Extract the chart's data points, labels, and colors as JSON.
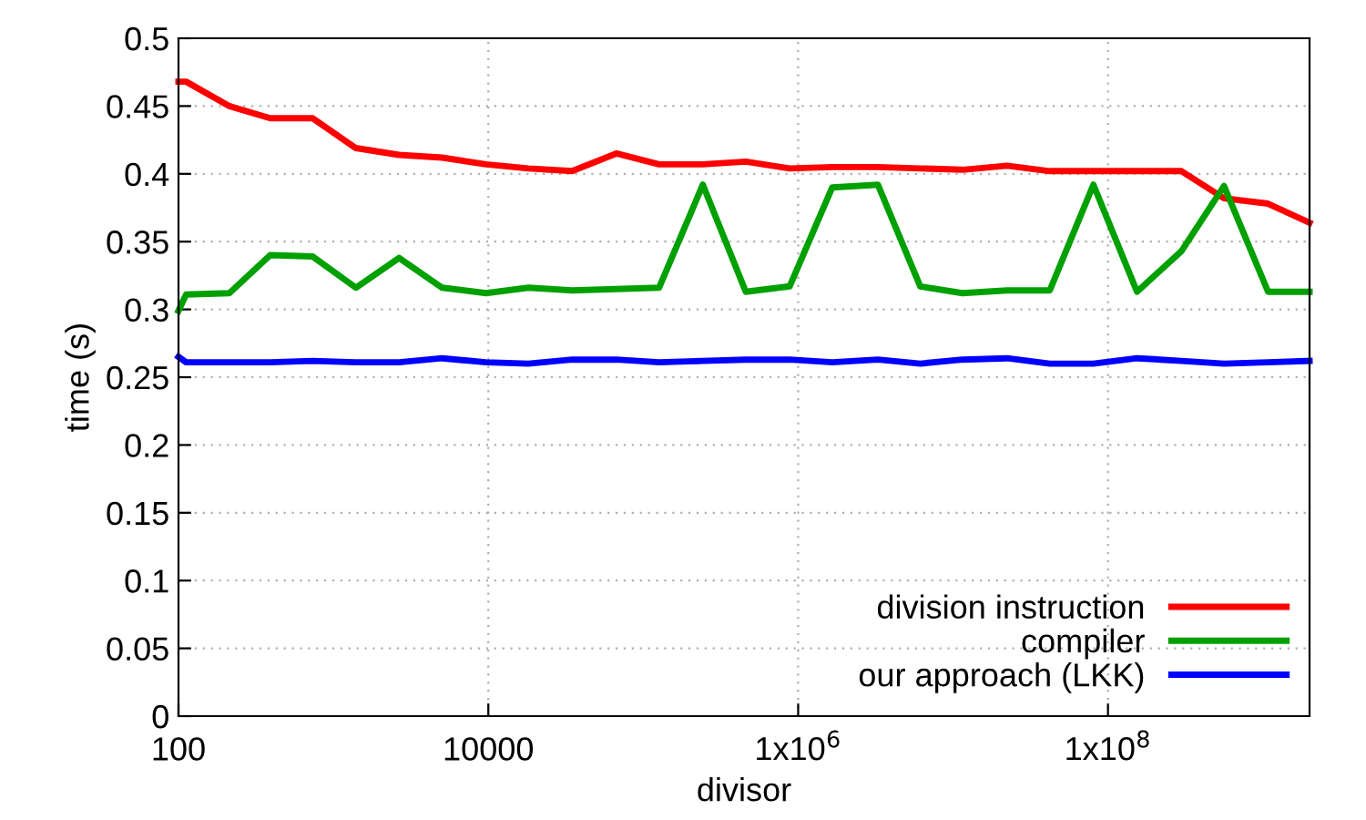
{
  "chart_data": {
    "type": "line",
    "xlabel": "divisor",
    "ylabel": "time (s)",
    "log": "x",
    "x": [
      100,
      112,
      213,
      391,
      736,
      1396,
      2654,
      5035,
      9660,
      18150,
      34750,
      67100,
      126500,
      242500,
      459000,
      881000,
      1660000,
      3270000,
      6140000,
      11500000,
      22300000,
      42100000,
      80500000,
      154000000,
      298000000,
      561000000,
      1080000000,
      2000000000
    ],
    "series": [
      {
        "name": "division instruction",
        "color": "#ff0000",
        "values": [
          0.468,
          0.468,
          0.45,
          0.441,
          0.441,
          0.419,
          0.414,
          0.412,
          0.407,
          0.404,
          0.402,
          0.415,
          0.407,
          0.407,
          0.409,
          0.404,
          0.405,
          0.405,
          0.404,
          0.403,
          0.406,
          0.402,
          0.402,
          0.402,
          0.402,
          0.382,
          0.378,
          0.364
        ]
      },
      {
        "name": "compiler",
        "color": "#00a000",
        "values": [
          0.299,
          0.311,
          0.312,
          0.34,
          0.339,
          0.316,
          0.338,
          0.316,
          0.312,
          0.316,
          0.314,
          0.315,
          0.316,
          0.392,
          0.313,
          0.317,
          0.39,
          0.392,
          0.317,
          0.312,
          0.314,
          0.314,
          0.392,
          0.313,
          0.343,
          0.391,
          0.313,
          0.313
        ]
      },
      {
        "name": "our approach (LKK)",
        "color": "#0000ff",
        "values": [
          0.265,
          0.261,
          0.261,
          0.261,
          0.262,
          0.261,
          0.261,
          0.264,
          0.261,
          0.26,
          0.263,
          0.263,
          0.261,
          0.262,
          0.263,
          0.263,
          0.261,
          0.263,
          0.26,
          0.263,
          0.264,
          0.26,
          0.26,
          0.264,
          0.262,
          0.26,
          0.261,
          0.262
        ]
      }
    ],
    "xlim": [
      100,
      2000000000
    ],
    "xticks": [
      100,
      10000,
      {
        "value": 1000000,
        "label": "1x10$^{6}$"
      },
      {
        "value": 100000000,
        "label": "1x10$^{8}$"
      }
    ],
    "ylim": [
      0,
      0.5
    ],
    "yticks": [
      0,
      0.05,
      0.1,
      0.15,
      0.2,
      0.25,
      0.3,
      0.35,
      0.4,
      0.45,
      0.5
    ],
    "grid": true,
    "legend": "bottom right",
    "line_style": "solid",
    "marker": "none"
  }
}
